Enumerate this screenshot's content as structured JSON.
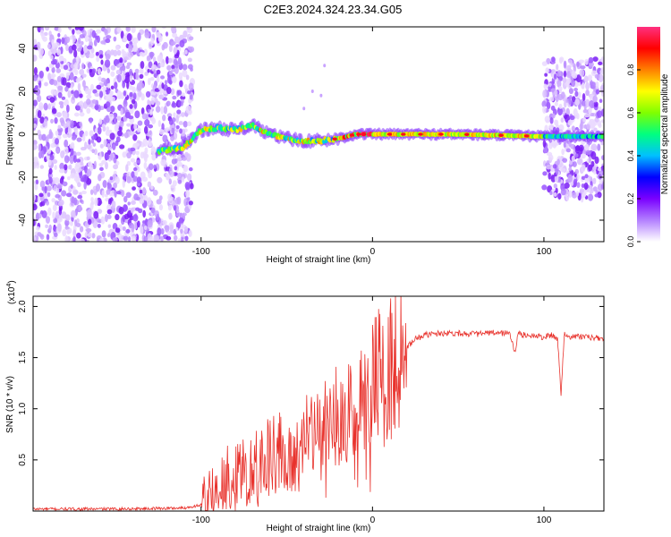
{
  "page": {
    "title": "C2E3.2024.324.23.34.G05"
  },
  "chart_data": [
    {
      "type": "heatmap",
      "xlabel": "Height of straight line (km)",
      "ylabel": "Frequency (Hz)",
      "xlim": [
        -198,
        135
      ],
      "ylim": [
        -50,
        50
      ],
      "xticks": [
        -100,
        0,
        100
      ],
      "yticks": [
        -40,
        -20,
        0,
        20,
        40
      ],
      "colorbar": {
        "label": "Normalized spectral amplitude",
        "range": [
          0.0,
          1.0
        ],
        "ticks": [
          "0.0",
          "0.2",
          "0.4",
          "0.6",
          "0.8"
        ],
        "colormap": [
          "#ffffff",
          "#b380ff",
          "#7a00ff",
          "#0000ff",
          "#00c0ff",
          "#00ff80",
          "#80ff00",
          "#ffff00",
          "#ff8000",
          "#ff0000",
          "#ff3080"
        ]
      },
      "features": {
        "ridge": [
          {
            "x": -125,
            "y": -8
          },
          {
            "x": -110,
            "y": -6
          },
          {
            "x": -100,
            "y": 2
          },
          {
            "x": -90,
            "y": 3
          },
          {
            "x": -80,
            "y": 2
          },
          {
            "x": -70,
            "y": 4
          },
          {
            "x": -60,
            "y": 0
          },
          {
            "x": -50,
            "y": -2
          },
          {
            "x": -40,
            "y": -3
          },
          {
            "x": -30,
            "y": -3
          },
          {
            "x": -20,
            "y": -2
          },
          {
            "x": -10,
            "y": 0
          },
          {
            "x": 0,
            "y": 0
          },
          {
            "x": 50,
            "y": 0
          },
          {
            "x": 100,
            "y": -1
          },
          {
            "x": 135,
            "y": -1
          }
        ],
        "noise_regions": [
          {
            "x_from": -198,
            "x_to": -105,
            "y_from": -50,
            "y_to": 50
          },
          {
            "x_from": 100,
            "x_to": 135,
            "y_from": -30,
            "y_to": 35
          }
        ]
      },
      "grid": false
    },
    {
      "type": "line",
      "xlabel": "Height of straight line (km)",
      "ylabel": "SNR (10 * v/v)",
      "y_scale_label": "(x10",
      "y_scale_exponent": "4",
      "xlim": [
        -198,
        135
      ],
      "ylim": [
        0,
        2.1
      ],
      "xticks": [
        -100,
        0,
        100
      ],
      "yticks": [
        "0.5",
        "1.0",
        "1.5",
        "2.0"
      ],
      "series": [
        {
          "color": "#e8322c",
          "x": [
            -198,
            -150,
            -110,
            -100,
            -95,
            -90,
            -85,
            -80,
            -75,
            -70,
            -65,
            -60,
            -55,
            -50,
            -45,
            -40,
            -35,
            -30,
            -25,
            -20,
            -15,
            -10,
            -5,
            0,
            5,
            8,
            10,
            15,
            20,
            25,
            30,
            35,
            40,
            50,
            60,
            70,
            80,
            83,
            85,
            90,
            95,
            100,
            105,
            108,
            110,
            112,
            115,
            120,
            125,
            130,
            135
          ],
          "y": [
            0.02,
            0.02,
            0.03,
            0.06,
            0.12,
            0.2,
            0.3,
            0.35,
            0.4,
            0.42,
            0.45,
            0.5,
            0.55,
            0.55,
            0.6,
            0.65,
            0.7,
            0.75,
            0.8,
            0.9,
            0.95,
            1.1,
            1.15,
            1.25,
            1.35,
            1.1,
            1.4,
            1.5,
            1.6,
            1.68,
            1.72,
            1.73,
            1.74,
            1.74,
            1.73,
            1.74,
            1.74,
            1.55,
            1.73,
            1.72,
            1.71,
            1.7,
            1.72,
            1.68,
            1.15,
            1.75,
            1.7,
            1.71,
            1.7,
            1.69,
            1.69
          ]
        }
      ],
      "grid": false
    }
  ]
}
